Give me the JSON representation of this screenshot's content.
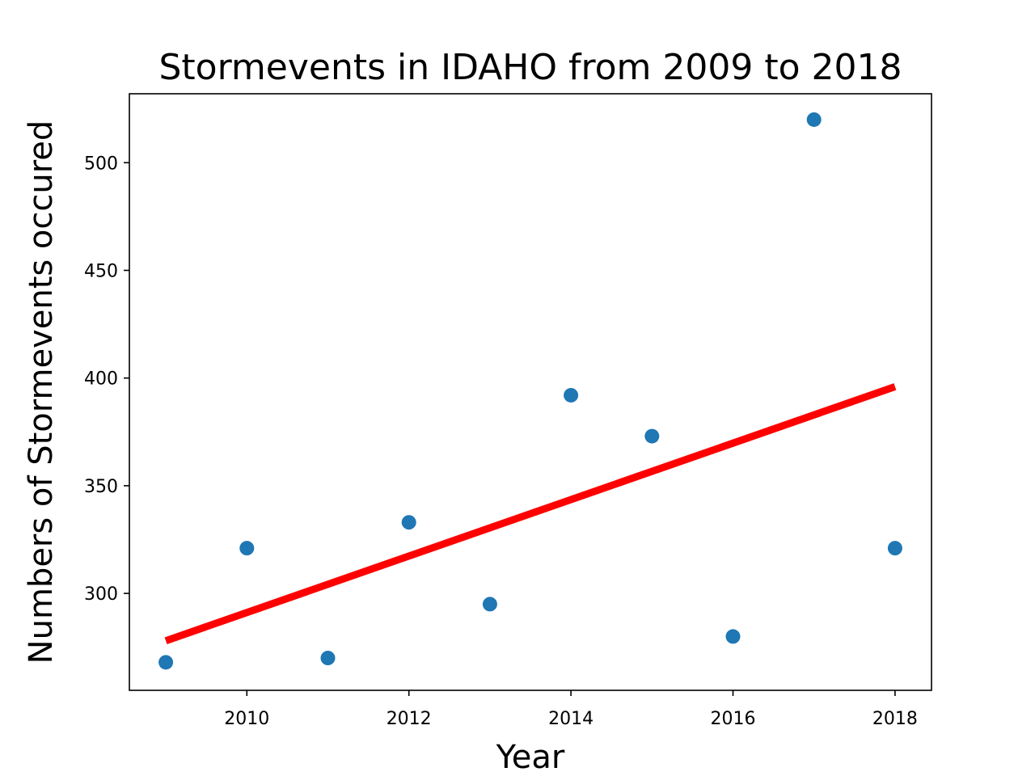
{
  "chart_data": {
    "type": "scatter",
    "title": "Stormevents in IDAHO from 2009 to 2018",
    "xlabel": "Year",
    "ylabel": "Numbers of Stormevents occured",
    "xlim": [
      2008.55,
      2018.45
    ],
    "ylim": [
      255,
      532
    ],
    "x_ticks": [
      2010,
      2012,
      2014,
      2016,
      2018
    ],
    "x_tick_labels": [
      "2010",
      "2012",
      "2014",
      "2016",
      "2018"
    ],
    "y_ticks": [
      300,
      350,
      400,
      450,
      500
    ],
    "y_tick_labels": [
      "300",
      "350",
      "400",
      "450",
      "500"
    ],
    "grid": false,
    "series": [
      {
        "type": "scatter",
        "color": "#1f77b4",
        "x": [
          2009,
          2010,
          2011,
          2012,
          2013,
          2014,
          2015,
          2016,
          2017,
          2018
        ],
        "y": [
          268,
          321,
          270,
          333,
          295,
          392,
          373,
          280,
          520,
          321
        ]
      },
      {
        "type": "line",
        "color": "#ff0000",
        "x": [
          2009,
          2018
        ],
        "y": [
          278,
          396
        ]
      }
    ]
  }
}
